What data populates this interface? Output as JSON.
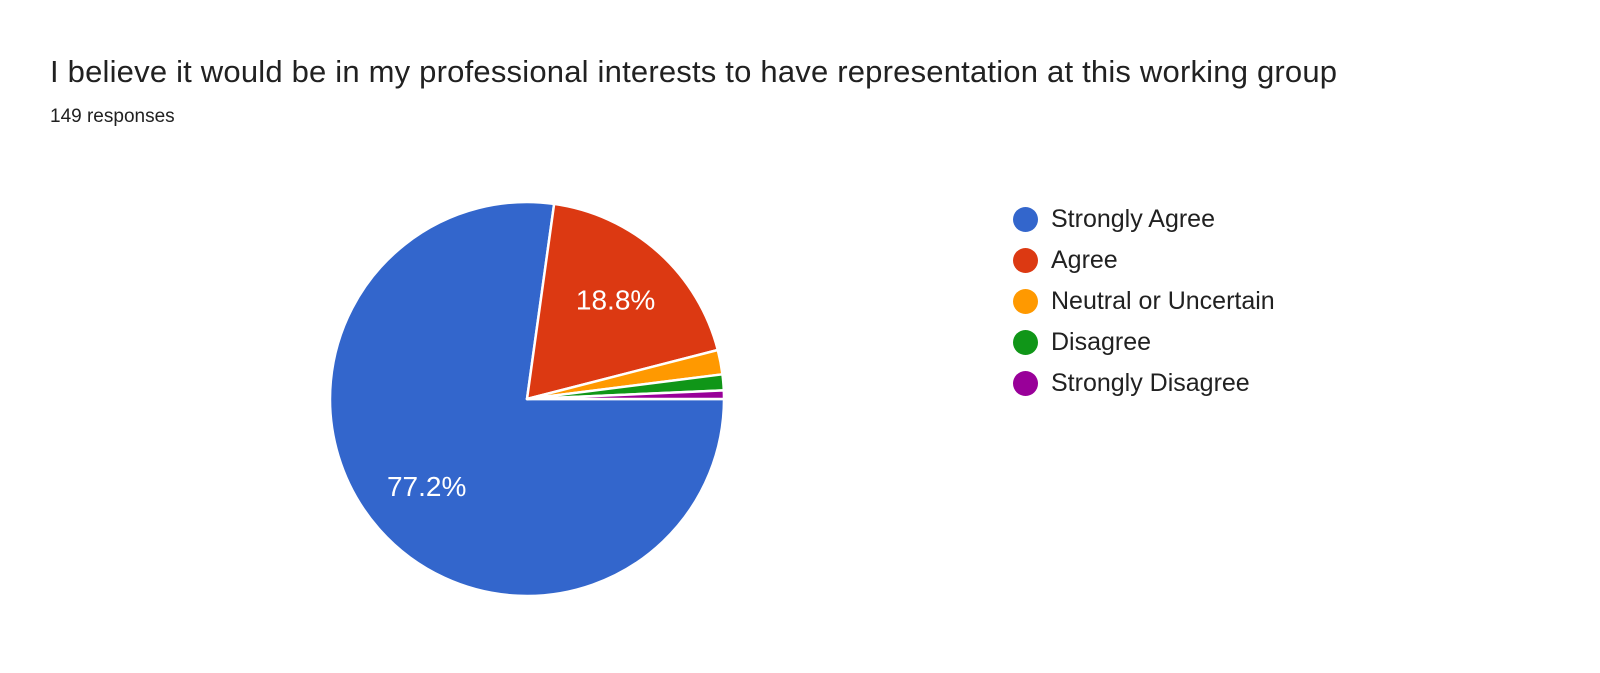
{
  "page": {
    "title": "I believe it would be in my professional interests to have representation at this working group",
    "responses_count": "149 responses"
  },
  "chart_data": {
    "type": "pie",
    "title": "I believe it would be in my professional interests to have representation at this working group",
    "subtitle": "149 responses",
    "total_responses": 149,
    "legend_position": "right",
    "start_angle_deg": 0,
    "direction": "clockwise",
    "label_radius_ratio": 0.675,
    "slices": [
      {
        "label": "Strongly Agree",
        "pct": 77.2,
        "display_label": "77.2%",
        "color": "#3366CC"
      },
      {
        "label": "Agree",
        "pct": 18.8,
        "display_label": "18.8%",
        "color": "#DC3912"
      },
      {
        "label": "Neutral or Uncertain",
        "pct": 2.0,
        "display_label": "",
        "color": "#FF9900"
      },
      {
        "label": "Disagree",
        "pct": 1.3,
        "display_label": "",
        "color": "#109618"
      },
      {
        "label": "Strongly Disagree",
        "pct": 0.7,
        "display_label": "",
        "color": "#990099"
      }
    ]
  }
}
